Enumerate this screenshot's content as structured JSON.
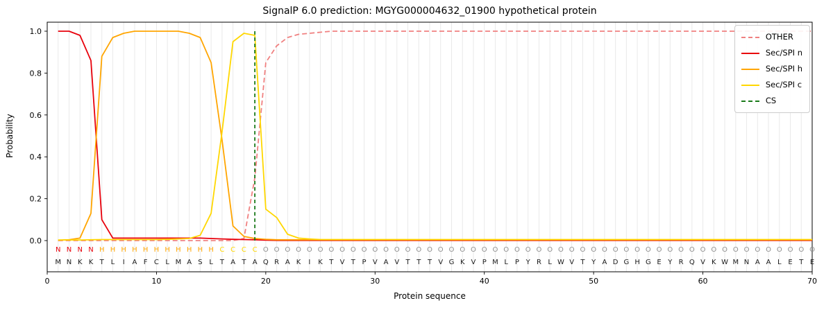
{
  "title": "SignalP 6.0 prediction: MGYG000004632_01900 hypothetical protein",
  "chart_data": {
    "type": "line",
    "xlabel": "Protein sequence",
    "ylabel": "Probability",
    "xlim": [
      0,
      70
    ],
    "ylim": [
      -0.15,
      1.05
    ],
    "x_ticks": [
      0,
      10,
      20,
      30,
      40,
      50,
      60,
      70
    ],
    "y_ticks": [
      "0.0",
      "0.2",
      "0.4",
      "0.6",
      "0.8",
      "1.0"
    ],
    "grid": "vertical-line-per-residue",
    "legend_position": "upper right",
    "series": [
      {
        "name": "OTHER",
        "color": "#f08080",
        "dash": true,
        "values": [
          0,
          0,
          0,
          0,
          0,
          0,
          0,
          0,
          0,
          0,
          0,
          0,
          0,
          0,
          0,
          0,
          0,
          0.01,
          0.3,
          0.85,
          0.93,
          0.97,
          0.985,
          0.99,
          0.995,
          1,
          1,
          1,
          1,
          1,
          1,
          1,
          1,
          1,
          1,
          1,
          1,
          1,
          1,
          1,
          1,
          1,
          1,
          1,
          1,
          1,
          1,
          1,
          1,
          1,
          1,
          1,
          1,
          1,
          1,
          1,
          1,
          1,
          1,
          1,
          1,
          1,
          1,
          1,
          1,
          1,
          1,
          1,
          1,
          1
        ]
      },
      {
        "name": "Sec/SPI n",
        "color": "#e8000b",
        "dash": false,
        "values": [
          1,
          1,
          0.98,
          0.86,
          0.1,
          0.012,
          0.012,
          0.012,
          0.012,
          0.012,
          0.012,
          0.012,
          0.012,
          0.012,
          0.01,
          0.008,
          0.006,
          0.005,
          0.004,
          0.002,
          0.001,
          0.001,
          0.001,
          0.001,
          0.001,
          0.001,
          0.001,
          0.001,
          0.001,
          0.001,
          0.001,
          0.001,
          0.001,
          0.001,
          0.001,
          0.001,
          0.001,
          0.001,
          0.001,
          0.001,
          0.001,
          0.001,
          0.001,
          0.001,
          0.001,
          0.001,
          0.001,
          0.001,
          0.001,
          0.001,
          0.001,
          0.001,
          0.001,
          0.001,
          0.001,
          0.001,
          0.001,
          0.001,
          0.001,
          0.001,
          0.001,
          0.001,
          0.001,
          0.001,
          0.001,
          0.001,
          0.001,
          0.001,
          0.001,
          0.001
        ]
      },
      {
        "name": "Sec/SPI h",
        "color": "#ffa500",
        "dash": false,
        "values": [
          0.002,
          0.004,
          0.012,
          0.13,
          0.88,
          0.97,
          0.99,
          1,
          1,
          1,
          1,
          1,
          0.99,
          0.97,
          0.85,
          0.48,
          0.07,
          0.02,
          0.01,
          0.006,
          0.004,
          0.004,
          0.004,
          0.004,
          0.004,
          0.004,
          0.004,
          0.004,
          0.004,
          0.004,
          0.004,
          0.004,
          0.004,
          0.004,
          0.004,
          0.004,
          0.004,
          0.004,
          0.004,
          0.004,
          0.004,
          0.004,
          0.004,
          0.004,
          0.004,
          0.004,
          0.004,
          0.004,
          0.004,
          0.004,
          0.004,
          0.004,
          0.004,
          0.004,
          0.004,
          0.004,
          0.004,
          0.004,
          0.004,
          0.004,
          0.004,
          0.004,
          0.004,
          0.004,
          0.004,
          0.004,
          0.004,
          0.004,
          0.004,
          0.004
        ]
      },
      {
        "name": "Sec/SPI c",
        "color": "#ffd700",
        "dash": false,
        "values": [
          0.003,
          0.003,
          0.003,
          0.004,
          0.005,
          0.005,
          0.005,
          0.005,
          0.005,
          0.005,
          0.006,
          0.008,
          0.01,
          0.025,
          0.13,
          0.52,
          0.95,
          0.99,
          0.98,
          0.15,
          0.11,
          0.03,
          0.012,
          0.008,
          0.005,
          0.005,
          0.005,
          0.005,
          0.005,
          0.005,
          0.005,
          0.005,
          0.005,
          0.005,
          0.005,
          0.005,
          0.005,
          0.005,
          0.005,
          0.005,
          0.005,
          0.005,
          0.005,
          0.005,
          0.005,
          0.005,
          0.005,
          0.005,
          0.005,
          0.005,
          0.005,
          0.005,
          0.005,
          0.005,
          0.005,
          0.005,
          0.005,
          0.005,
          0.005,
          0.005,
          0.005,
          0.005,
          0.005,
          0.005,
          0.005,
          0.005,
          0.005,
          0.005,
          0.005,
          0.005
        ]
      }
    ],
    "cs": {
      "label": "CS",
      "position": 19,
      "color": "#1a7a1a",
      "dash": true
    },
    "legend": [
      {
        "label": "OTHER",
        "color": "#f08080",
        "dash": true
      },
      {
        "label": "Sec/SPI n",
        "color": "#e8000b",
        "dash": false
      },
      {
        "label": "Sec/SPI h",
        "color": "#ffa500",
        "dash": false
      },
      {
        "label": "Sec/SPI c",
        "color": "#ffd700",
        "dash": false
      },
      {
        "label": "CS",
        "color": "#1a7a1a",
        "dash": true
      }
    ],
    "sequence": "MNKKTLIAFCLMASLTATAQRAKIKTVTPVAVTTTVGKVPMLPYRLWVTYADGHGEYRQVKWMNAALETE",
    "region_labels": "NNNNHHHHHHHHHHHCCCCOOOOOOOOOOOOOOOOOOOOOOOOOOOOOOOOOOOOOOOOOOOOOOOOOOO",
    "region_colors": {
      "N": "#e8000b",
      "H": "#ffa500",
      "C": "#ffd700",
      "O": "#8f8f8f"
    }
  }
}
